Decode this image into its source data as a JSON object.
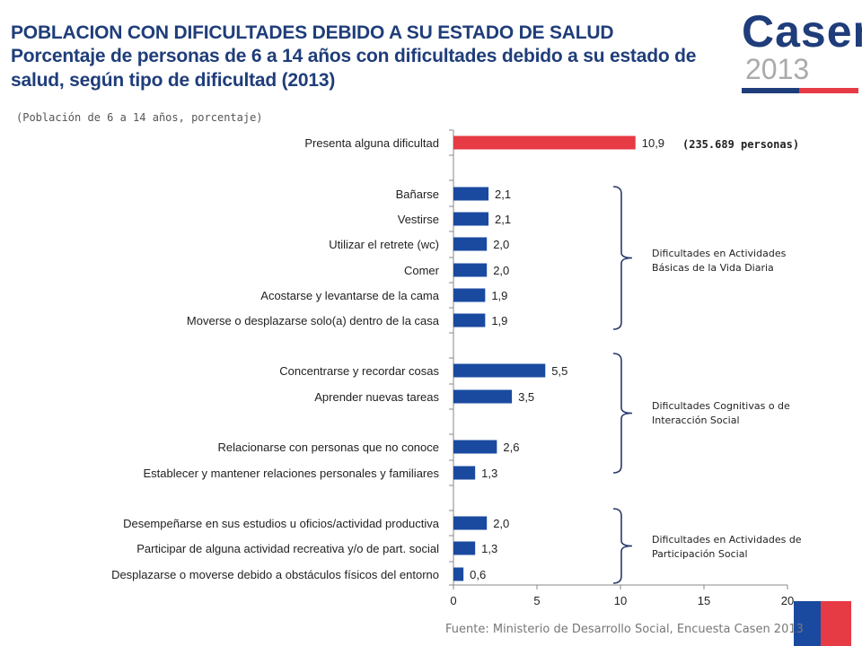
{
  "header": {
    "title_line1": "POBLACION CON DIFICULTADES DEBIDO A SU ESTADO DE SALUD",
    "title_line2": "Porcentaje de personas de 6 a 14 años con dificultades debido a su estado de salud, según tipo de dificultad (2013)",
    "subtitle": "(Población de 6 a 14 años, porcentaje)"
  },
  "logo": {
    "word": "Casen",
    "year": "2013"
  },
  "footer": {
    "source": "Fuente: Ministerio de Desarrollo Social, Encuesta Casen 2013"
  },
  "colors": {
    "highlight": "#e63a44",
    "bar": "#1a4aa0",
    "title": "#1f3d7a"
  },
  "chart_data": {
    "type": "bar",
    "orientation": "horizontal",
    "categories": [
      "Presenta alguna dificultad",
      "Bañarse",
      "Vestirse",
      "Utilizar el retrete (wc)",
      "Comer",
      "Acostarse y levantarse de la cama",
      "Moverse o desplazarse solo(a) dentro de la casa",
      "Concentrarse y recordar cosas",
      "Aprender nuevas tareas",
      "Relacionarse con personas que no conoce",
      "Establecer y mantener relaciones personales y familiares",
      "Desempeñarse en sus estudios u oficios/actividad productiva",
      "Participar de alguna actividad recreativa y/o de part. social",
      "Desplazarse o moverse debido a obstáculos físicos del entorno"
    ],
    "values": [
      10.9,
      2.1,
      2.1,
      2.0,
      2.0,
      1.9,
      1.9,
      5.5,
      3.5,
      2.6,
      1.3,
      2.0,
      1.3,
      0.6
    ],
    "value_labels": [
      "10,9",
      "2,1",
      "2,1",
      "2,0",
      "2,0",
      "1,9",
      "1,9",
      "5,5",
      "3,5",
      "2,6",
      "1,3",
      "2,0",
      "1,3",
      "0,6"
    ],
    "highlight_index": 0,
    "xlim": [
      0,
      20
    ],
    "xticks": [
      "0",
      "5",
      "10",
      "15",
      "20"
    ],
    "grid": false,
    "annotation": "(235.689 personas)",
    "groups": [
      {
        "label_line1": "Dificultades en Actividades",
        "label_line2": "Básicas de la Vida Diaria"
      },
      {
        "label_line1": "Dificultades Cognitivas o de",
        "label_line2": "Interacción Social"
      },
      {
        "label_line1": "Dificultades en Actividades de",
        "label_line2": "Participación Social"
      }
    ]
  }
}
